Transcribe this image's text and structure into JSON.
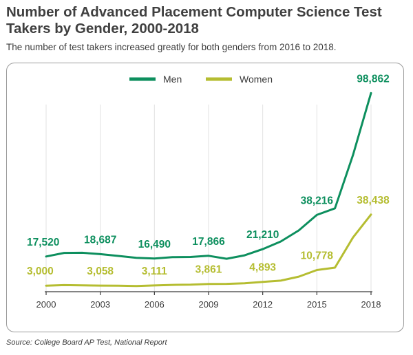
{
  "header": {
    "title": "Number of Advanced Placement Computer Science Test Takers by Gender, 2000-2018",
    "subtitle": "The number of test takers increased greatly for both genders from 2016 to 2018."
  },
  "footer": {
    "source": "Source: College Board AP Test, National Report"
  },
  "chart_data": {
    "type": "line",
    "title": "Number of Advanced Placement Computer Science Test Takers by Gender, 2000-2018",
    "xlabel": "",
    "ylabel": "",
    "x": [
      2000,
      2001,
      2002,
      2003,
      2004,
      2005,
      2006,
      2007,
      2008,
      2009,
      2010,
      2011,
      2012,
      2013,
      2014,
      2015,
      2016,
      2017,
      2018
    ],
    "xticks": [
      2000,
      2003,
      2006,
      2009,
      2012,
      2015,
      2018
    ],
    "xlim": [
      2000,
      2018
    ],
    "ylim": [
      0,
      100000
    ],
    "grid": "vertical",
    "legend_position": "top-center",
    "series": [
      {
        "name": "Men",
        "color": "#0d8f5e",
        "values": [
          17520,
          19300,
          19400,
          18687,
          17800,
          16900,
          16490,
          17200,
          17300,
          17866,
          16400,
          18100,
          21210,
          25000,
          30500,
          38216,
          41500,
          68000,
          98862
        ],
        "labels": [
          {
            "x": 2000,
            "text": "17,520"
          },
          {
            "x": 2003,
            "text": "18,687"
          },
          {
            "x": 2006,
            "text": "16,490"
          },
          {
            "x": 2009,
            "text": "17,866"
          },
          {
            "x": 2012,
            "text": "21,210"
          },
          {
            "x": 2015,
            "text": "38,216"
          },
          {
            "x": 2018,
            "text": "98,862"
          }
        ]
      },
      {
        "name": "Women",
        "color": "#b5bd31",
        "values": [
          3000,
          3300,
          3200,
          3058,
          3000,
          2800,
          3111,
          3400,
          3500,
          3861,
          3900,
          4200,
          4893,
          5500,
          7500,
          10778,
          12000,
          27000,
          38438
        ],
        "labels": [
          {
            "x": 2000,
            "text": "3,000"
          },
          {
            "x": 2003,
            "text": "3,058"
          },
          {
            "x": 2006,
            "text": "3,111"
          },
          {
            "x": 2009,
            "text": "3,861"
          },
          {
            "x": 2012,
            "text": "4,893"
          },
          {
            "x": 2015,
            "text": "10,778"
          },
          {
            "x": 2018,
            "text": "38,438"
          }
        ]
      }
    ]
  }
}
